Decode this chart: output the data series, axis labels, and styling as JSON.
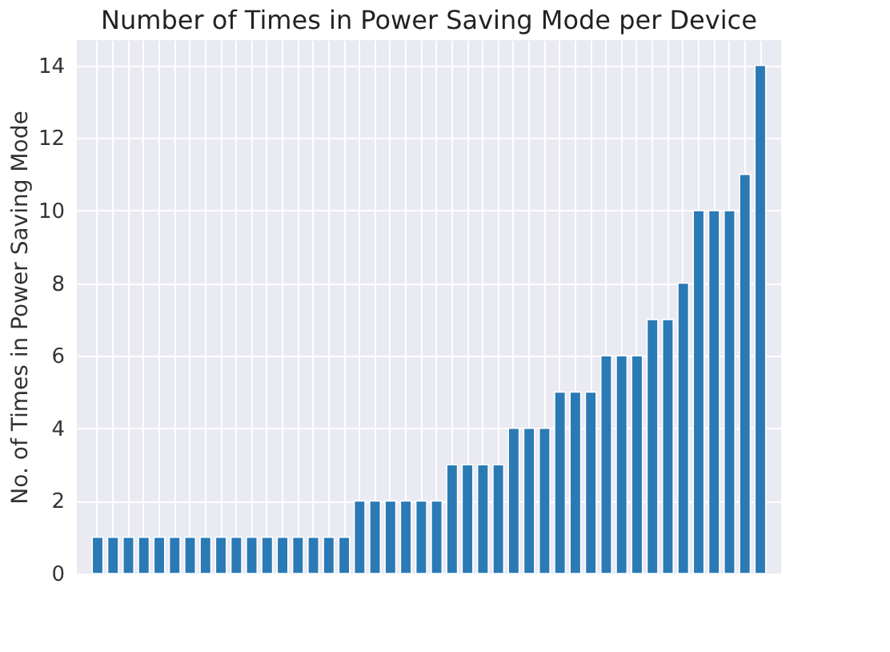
{
  "chart_data": {
    "type": "bar",
    "title": "Number of Times in Power Saving Mode per Device",
    "ylabel": "No. of Times in Power Saving Mode",
    "categories": [
      null,
      null,
      null,
      null,
      null,
      null,
      null,
      null,
      null,
      null,
      null,
      null,
      null,
      null,
      null,
      null,
      null,
      null,
      null,
      null,
      null,
      null,
      null,
      null,
      null,
      null,
      null,
      null,
      null,
      null,
      null,
      null,
      null,
      null,
      null,
      null,
      null,
      null,
      null,
      null,
      null,
      null,
      null,
      null
    ],
    "values": [
      1,
      1,
      1,
      1,
      1,
      1,
      1,
      1,
      1,
      1,
      1,
      1,
      1,
      1,
      1,
      1,
      1,
      2,
      2,
      2,
      2,
      2,
      2,
      3,
      3,
      3,
      3,
      4,
      4,
      4,
      5,
      5,
      5,
      6,
      6,
      6,
      7,
      7,
      8,
      10,
      10,
      10,
      11,
      14
    ],
    "color": "#2a7ab5",
    "ylim": [
      0,
      14.7
    ],
    "yticks": [
      0,
      2,
      4,
      6,
      8,
      10,
      12,
      14
    ],
    "grid": true,
    "tick_labels": "y"
  }
}
